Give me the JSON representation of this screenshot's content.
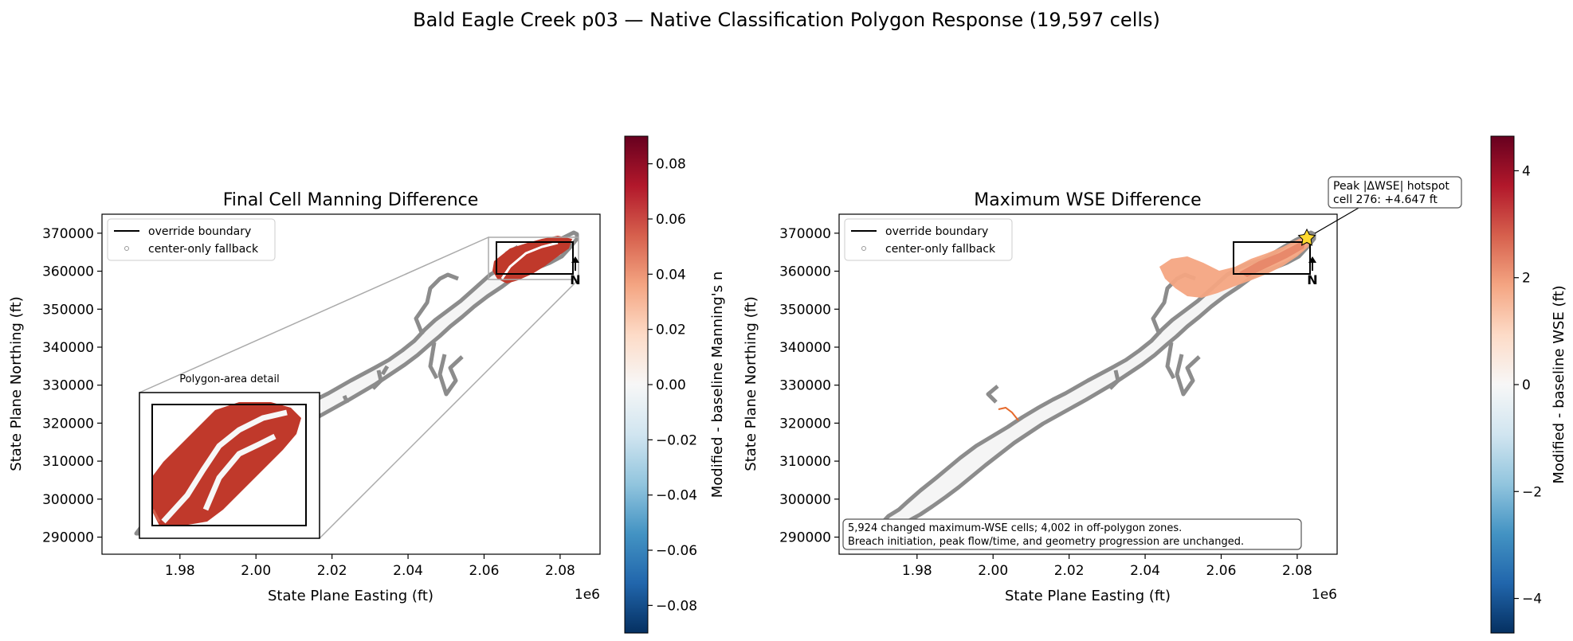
{
  "figure": {
    "suptitle": "Bald Eagle Creek p03 — Native Classification Polygon Response (19,597 cells)"
  },
  "chart_data": [
    {
      "type": "heatmap",
      "title": "Final Cell Manning Difference",
      "xlabel": "State Plane Easting (ft)",
      "ylabel": "State Plane Northing (ft)",
      "x_offset_label": "1e6",
      "xlim": [
        1.9595,
        2.0905
      ],
      "ylim": [
        285500,
        375000
      ],
      "xticks": [
        1.98,
        2.0,
        2.02,
        2.04,
        2.06,
        2.08
      ],
      "xtick_labels": [
        "1.98",
        "2.00",
        "2.02",
        "2.04",
        "2.06",
        "2.08"
      ],
      "yticks": [
        290000,
        300000,
        310000,
        320000,
        330000,
        340000,
        350000,
        360000,
        370000
      ],
      "ytick_labels": [
        "290000",
        "300000",
        "310000",
        "320000",
        "330000",
        "340000",
        "350000",
        "360000",
        "370000"
      ],
      "legend": {
        "placement": "upper-left",
        "items": [
          "override boundary",
          "center-only fallback"
        ]
      },
      "inset_label": "Polygon-area detail",
      "override_box": {
        "x": [
          2.0635,
          2.0835
        ],
        "y": [
          352000,
          367500
        ]
      },
      "zoom_source_box": {
        "x": [
          2.062,
          2.085
        ],
        "y": [
          350500,
          369500
        ]
      },
      "inset_box": {
        "x": [
          1.9705,
          2.017
        ],
        "y": [
          290000,
          328500
        ]
      },
      "north_arrow": {
        "x": 2.0835,
        "y": 355000,
        "label": "N"
      },
      "colorbar": {
        "label": "Modified - baseline Manning's n",
        "range": [
          -0.09,
          0.09
        ],
        "ticks": [
          -0.08,
          -0.06,
          -0.04,
          -0.02,
          0.0,
          0.02,
          0.04,
          0.06,
          0.08
        ],
        "tick_labels": [
          "−0.08",
          "−0.06",
          "−0.04",
          "−0.02",
          "0.00",
          "0.02",
          "0.04",
          "0.06",
          "0.08"
        ]
      },
      "changed_value_typical": 0.075
    },
    {
      "type": "heatmap",
      "title": "Maximum WSE Difference",
      "xlabel": "State Plane Easting (ft)",
      "ylabel": "State Plane Northing (ft)",
      "x_offset_label": "1e6",
      "xlim": [
        1.9595,
        2.0905
      ],
      "ylim": [
        285500,
        375000
      ],
      "xticks": [
        1.98,
        2.0,
        2.02,
        2.04,
        2.06,
        2.08
      ],
      "xtick_labels": [
        "1.98",
        "2.00",
        "2.02",
        "2.04",
        "2.06",
        "2.08"
      ],
      "yticks": [
        290000,
        300000,
        310000,
        320000,
        330000,
        340000,
        350000,
        360000,
        370000
      ],
      "ytick_labels": [
        "290000",
        "300000",
        "310000",
        "320000",
        "330000",
        "340000",
        "350000",
        "360000",
        "370000"
      ],
      "legend": {
        "placement": "upper-left",
        "items": [
          "override boundary",
          "center-only fallback"
        ]
      },
      "override_box": {
        "x": [
          2.0635,
          2.0835
        ],
        "y": [
          352000,
          367500
        ]
      },
      "north_arrow": {
        "x": 2.0835,
        "y": 355000,
        "label": "N"
      },
      "hotspot": {
        "x": 2.0845,
        "y": 368800,
        "text_line1": "Peak |ΔWSE| hotspot",
        "text_line2": "cell 276: +4.647 ft",
        "value": 4.647
      },
      "footnote_line1": "5,924 changed maximum-WSE cells; 4,002 in off-polygon zones.",
      "footnote_line2": "Breach initiation, peak flow/time, and geometry progression are unchanged.",
      "colorbar": {
        "label": "Modified - baseline WSE (ft)",
        "range": [
          -4.647,
          4.647
        ],
        "ticks": [
          -4,
          -2,
          0,
          2,
          4
        ],
        "tick_labels": [
          "−4",
          "−2",
          "0",
          "2",
          "4"
        ]
      }
    }
  ],
  "colors": {
    "bg": "#ffffff",
    "domain_fill": "#f5f5f5",
    "boundary": "#8c8c8c",
    "box": "#000000",
    "zoom_lines": "#aaaaaa",
    "cmap": [
      "#053061",
      "#2166ac",
      "#4393c3",
      "#92c5de",
      "#d1e5f0",
      "#f7f7f7",
      "#fddbc7",
      "#f4a582",
      "#d6604d",
      "#b2182b",
      "#67001f"
    ]
  }
}
